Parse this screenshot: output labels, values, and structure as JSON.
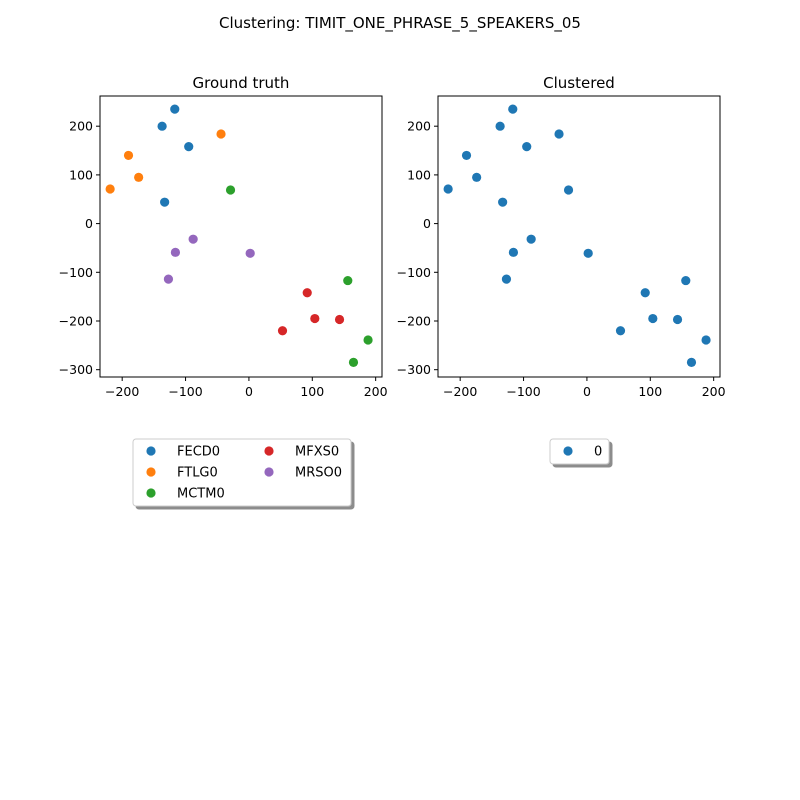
{
  "suptitle": "Clustering: TIMIT_ONE_PHRASE_5_SPEAKERS_05",
  "colors": {
    "FECD0": "#1f77b4",
    "FTLG0": "#ff7f0e",
    "MCTM0": "#2ca02c",
    "MFXS0": "#d62728",
    "MRSO0": "#9467bd",
    "0": "#1f77b4"
  },
  "chart_data": [
    {
      "type": "scatter",
      "title": "Ground truth",
      "xlim": [
        -235,
        210
      ],
      "ylim": [
        -315,
        262
      ],
      "xticks": [
        -200,
        -100,
        0,
        100,
        200
      ],
      "yticks": [
        -300,
        -200,
        -100,
        0,
        100,
        200
      ],
      "xtick_labels": [
        "−200",
        "−100",
        "0",
        "100",
        "200"
      ],
      "ytick_labels": [
        "−300",
        "−200",
        "−100",
        "0",
        "100",
        "200"
      ],
      "legend": {
        "ncol": 2,
        "entries": [
          "FECD0",
          "FTLG0",
          "MCTM0",
          "MFXS0",
          "MRSO0"
        ]
      },
      "series": [
        {
          "name": "FECD0",
          "x": [
            -117,
            -137,
            -95,
            -133
          ],
          "y": [
            235,
            200,
            158,
            44
          ]
        },
        {
          "name": "FTLG0",
          "x": [
            -44,
            -190,
            -174,
            -219
          ],
          "y": [
            184,
            140,
            95,
            71
          ]
        },
        {
          "name": "MCTM0",
          "x": [
            -29,
            156,
            188,
            165
          ],
          "y": [
            69,
            -117,
            -239,
            -285
          ]
        },
        {
          "name": "MFXS0",
          "x": [
            92,
            104,
            143,
            53
          ],
          "y": [
            -142,
            -195,
            -197,
            -220
          ]
        },
        {
          "name": "MRSO0",
          "x": [
            -88,
            -116,
            2,
            -127
          ],
          "y": [
            -32,
            -59,
            -61,
            -114
          ]
        }
      ]
    },
    {
      "type": "scatter",
      "title": "Clustered",
      "xlim": [
        -235,
        210
      ],
      "ylim": [
        -315,
        262
      ],
      "xticks": [
        -200,
        -100,
        0,
        100,
        200
      ],
      "yticks": [
        -300,
        -200,
        -100,
        0,
        100,
        200
      ],
      "xtick_labels": [
        "−200",
        "−100",
        "0",
        "100",
        "200"
      ],
      "ytick_labels": [
        "−300",
        "−200",
        "−100",
        "0",
        "100",
        "200"
      ],
      "legend": {
        "ncol": 1,
        "entries": [
          "0"
        ]
      },
      "series": [
        {
          "name": "0",
          "x": [
            -117,
            -137,
            -95,
            -133,
            -44,
            -190,
            -174,
            -219,
            -29,
            156,
            188,
            165,
            92,
            104,
            143,
            53,
            -88,
            -116,
            2,
            -127
          ],
          "y": [
            235,
            200,
            158,
            44,
            184,
            140,
            95,
            71,
            69,
            -117,
            -239,
            -285,
            -142,
            -195,
            -197,
            -220,
            -32,
            -59,
            -61,
            -114
          ]
        }
      ]
    }
  ]
}
